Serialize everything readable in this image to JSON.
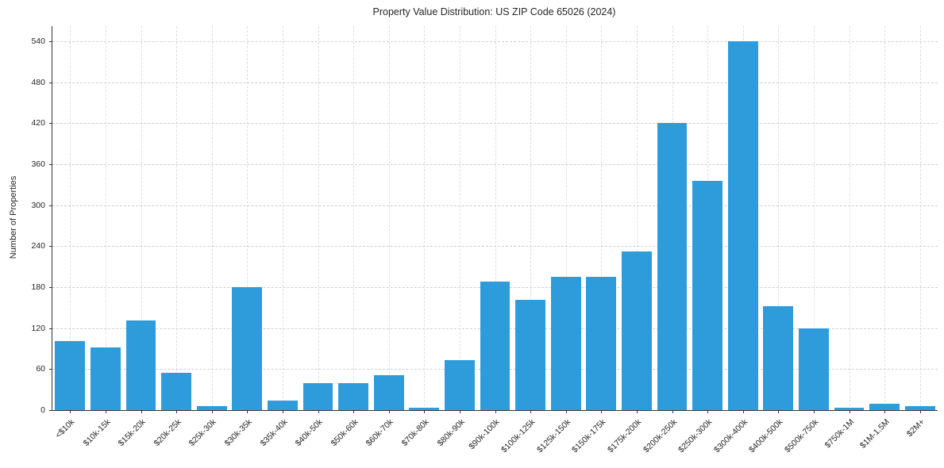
{
  "chart_data": {
    "type": "bar",
    "title": "Property Value Distribution: US ZIP Code 65026 (2024)",
    "xlabel": "",
    "ylabel": "Number of Properties",
    "categories": [
      "<$10k",
      "$10k-15k",
      "$15k-20k",
      "$20k-25k",
      "$25k-30k",
      "$30k-35k",
      "$35k-40k",
      "$40k-50k",
      "$50k-60k",
      "$60k-70k",
      "$70k-80k",
      "$80k-90k",
      "$90k-100k",
      "$100k-125k",
      "$125k-150k",
      "$150k-175k",
      "$175k-200k",
      "$200k-250k",
      "$250k-300k",
      "$300k-400k",
      "$400k-500k",
      "$500k-750k",
      "$750k-1M",
      "$1M-1.5M",
      "$2M+"
    ],
    "values": [
      101,
      92,
      131,
      55,
      6,
      180,
      14,
      40,
      40,
      51,
      4,
      73,
      188,
      161,
      195,
      195,
      232,
      420,
      336,
      540,
      152,
      120,
      4,
      9,
      6
    ],
    "ylim": [
      0,
      562
    ],
    "yticks": [
      0,
      60,
      120,
      180,
      240,
      300,
      360,
      420,
      480,
      540
    ],
    "bar_color": "#2e9cdb",
    "grid": "dashed-horizontal-and-vertical",
    "legend": "none"
  }
}
